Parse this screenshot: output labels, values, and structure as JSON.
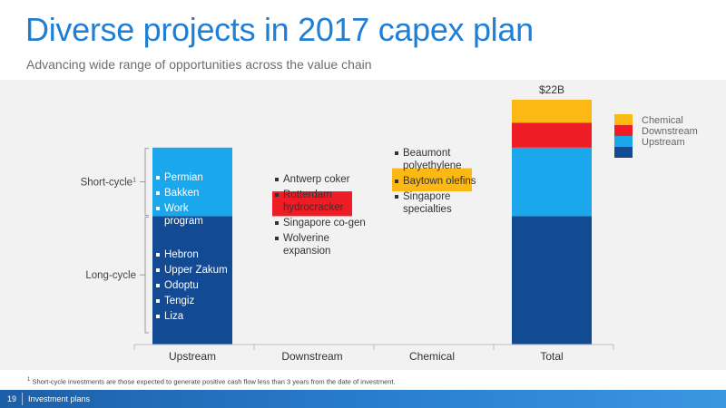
{
  "header": {
    "title": "Diverse projects in 2017 capex plan",
    "subtitle": "Advancing wide range of opportunities across the value chain"
  },
  "chart_data": {
    "type": "bar",
    "stacked": true,
    "unit": "$B",
    "categories": [
      "Upstream",
      "Downstream",
      "Chemical",
      "Total"
    ],
    "category_offsets": [
      0,
      16.1,
      19.2,
      0
    ],
    "series": [
      {
        "name": "Upstream",
        "color": "#124a93",
        "values": [
          16.1,
          0,
          0,
          16.1
        ]
      },
      {
        "name": "Short-cycle",
        "color": "#1aa7ec",
        "values": [
          8.6,
          0,
          0,
          8.6
        ]
      },
      {
        "name": "Downstream",
        "color": "#ee1c25",
        "values": [
          0,
          3.1,
          0,
          3.1
        ]
      },
      {
        "name": "Chemical",
        "color": "#fdb913",
        "values": [
          0,
          0,
          2.9,
          2.9
        ]
      }
    ],
    "ylim": [
      0,
      30.7
    ],
    "total_label": "$22B",
    "legend": [
      {
        "name": "Chemical",
        "color": "#fdb913"
      },
      {
        "name": "Downstream",
        "color": "#ee1c25"
      },
      {
        "name": "Upstream",
        "color": "#1aa7ec"
      },
      {
        "name": "",
        "color": "#124a93"
      }
    ],
    "legend_position": "top-right",
    "grid": false,
    "brace_labels": {
      "short_cycle": "Short-cycle",
      "short_cycle_sup": "1",
      "long_cycle": "Long-cycle"
    },
    "annotations": {
      "upstream_short": [
        "Permian",
        "Bakken",
        "Work program"
      ],
      "upstream_long": [
        "Hebron",
        "Upper Zakum",
        "Odoptu",
        "Tengiz",
        "Liza"
      ],
      "downstream": [
        "Antwerp coker",
        "Rotterdam hydrocracker",
        "Singapore co-gen",
        "Wolverine expansion"
      ],
      "chemical": [
        "Beaumont polyethylene",
        "Baytown olefins",
        "Singapore specialties"
      ]
    }
  },
  "footnote": {
    "marker": "1",
    "text": "Short-cycle investments are those expected to generate positive cash flow less than 3 years from the date of investment."
  },
  "footer": {
    "page_number": "19",
    "section": "Investment plans"
  }
}
